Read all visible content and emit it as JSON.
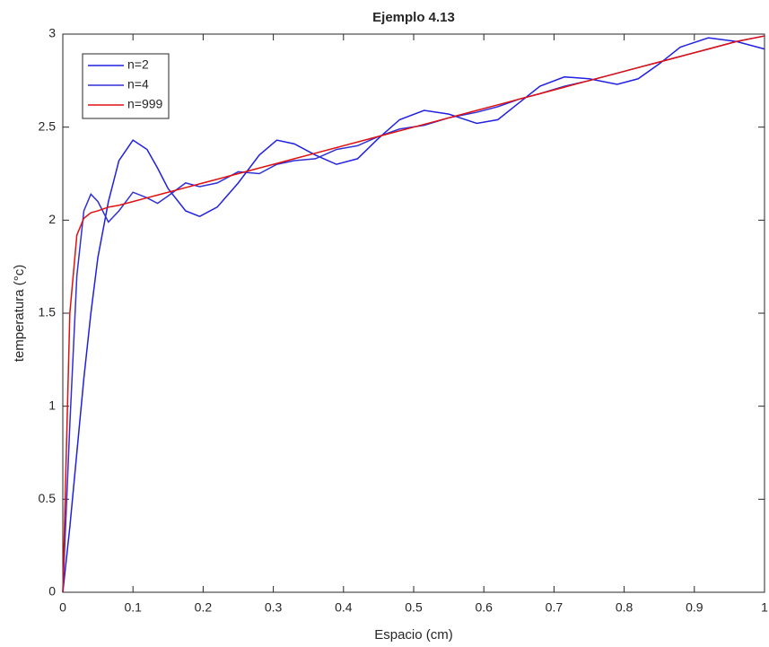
{
  "chart_data": {
    "type": "line",
    "title": "Ejemplo 4.13",
    "xlabel": "Espacio (cm)",
    "ylabel": "temperatura  (°c)",
    "x": [
      0,
      0.01,
      0.02,
      0.03,
      0.04,
      0.05,
      0.065,
      0.08,
      0.1,
      0.12,
      0.135,
      0.15,
      0.175,
      0.195,
      0.22,
      0.25,
      0.28,
      0.305,
      0.33,
      0.36,
      0.39,
      0.42,
      0.45,
      0.48,
      0.515,
      0.55,
      0.59,
      0.62,
      0.65,
      0.68,
      0.715,
      0.75,
      0.79,
      0.82,
      0.85,
      0.88,
      0.92,
      0.96,
      1.0
    ],
    "series": [
      {
        "name": "n=2",
        "color": "#2020e0",
        "values": [
          0,
          0.35,
          0.75,
          1.15,
          1.5,
          1.8,
          2.1,
          2.32,
          2.43,
          2.38,
          2.28,
          2.17,
          2.05,
          2.02,
          2.07,
          2.2,
          2.35,
          2.43,
          2.41,
          2.35,
          2.3,
          2.33,
          2.44,
          2.54,
          2.59,
          2.57,
          2.52,
          2.54,
          2.63,
          2.72,
          2.77,
          2.76,
          2.73,
          2.76,
          2.84,
          2.93,
          2.98,
          2.96,
          2.92
        ]
      },
      {
        "name": "n=4",
        "color": "#3030d8",
        "values": [
          0,
          0.9,
          1.7,
          2.05,
          2.14,
          2.1,
          1.99,
          2.05,
          2.15,
          2.12,
          2.09,
          2.13,
          2.2,
          2.18,
          2.2,
          2.26,
          2.25,
          2.3,
          2.32,
          2.33,
          2.38,
          2.4,
          2.45,
          2.49,
          2.51,
          2.55,
          2.58,
          2.61,
          2.65,
          2.68,
          2.72,
          2.75,
          2.79,
          2.82,
          2.85,
          2.88,
          2.92,
          2.96,
          2.99
        ]
      },
      {
        "name": "n=999",
        "color": "#e01010",
        "values": [
          0,
          1.5,
          1.92,
          2.01,
          2.04,
          2.05,
          2.07,
          2.08,
          2.1,
          2.12,
          2.135,
          2.15,
          2.175,
          2.195,
          2.22,
          2.25,
          2.28,
          2.305,
          2.33,
          2.36,
          2.39,
          2.42,
          2.45,
          2.48,
          2.515,
          2.55,
          2.59,
          2.62,
          2.65,
          2.68,
          2.715,
          2.75,
          2.79,
          2.82,
          2.85,
          2.88,
          2.92,
          2.96,
          2.99
        ]
      }
    ],
    "xlim": [
      0,
      1
    ],
    "xticks": [
      0,
      0.1,
      0.2,
      0.3,
      0.4,
      0.5,
      0.6,
      0.7,
      0.8,
      0.9,
      1
    ],
    "ylim": [
      0,
      3
    ],
    "yticks": [
      0,
      0.5,
      1,
      1.5,
      2,
      2.5,
      3
    ],
    "legend": "upper left"
  }
}
